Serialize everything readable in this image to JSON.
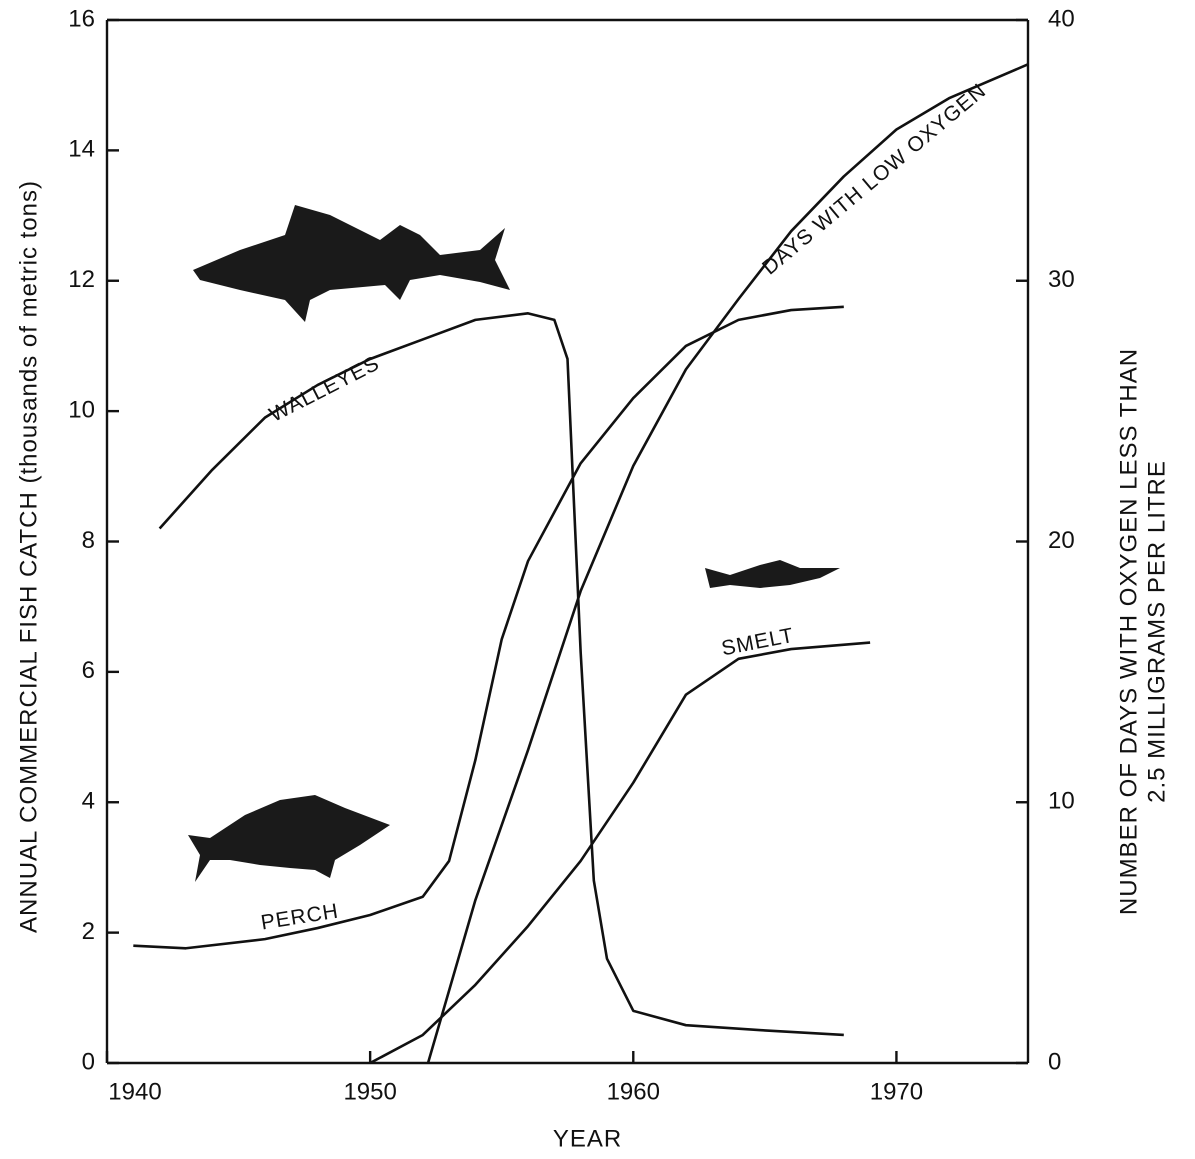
{
  "chart_data": {
    "type": "line",
    "xlabel": "YEAR",
    "ylabel": "ANNUAL COMMERCIAL FISH CATCH  (thousands of metric tons)",
    "y2label": [
      "NUMBER OF DAYS WITH OXYGEN LESS THAN",
      "2.5 MILLIGRAMS PER LITRE"
    ],
    "xlim": [
      1940,
      1975
    ],
    "xticks": [
      1940,
      1950,
      1960,
      1970
    ],
    "ylim": [
      0,
      16
    ],
    "yticks": [
      0,
      2,
      4,
      6,
      8,
      10,
      12,
      14,
      16
    ],
    "y2lim": [
      0,
      40
    ],
    "y2ticks": [
      0,
      10,
      20,
      30,
      40
    ],
    "series": [
      {
        "name": "WALLEYES",
        "color": "#111111",
        "x": [
          1942,
          1944,
          1946,
          1948,
          1950,
          1952,
          1954,
          1956,
          1957,
          1957.5,
          1958,
          1958.5,
          1959,
          1960,
          1962,
          1965,
          1968
        ],
        "values": [
          8.2,
          9.1,
          9.9,
          10.4,
          10.8,
          11.1,
          11.4,
          11.5,
          11.4,
          10.8,
          6.3,
          2.8,
          1.6,
          0.8,
          0.58,
          0.5,
          0.43
        ]
      },
      {
        "name": "PERCH",
        "color": "#111111",
        "x": [
          1941,
          1943,
          1946,
          1948,
          1950,
          1952,
          1953,
          1954,
          1955,
          1956,
          1958,
          1960,
          1962,
          1964,
          1966,
          1968
        ],
        "values": [
          1.8,
          1.76,
          1.9,
          2.07,
          2.27,
          2.55,
          3.1,
          4.65,
          6.5,
          7.7,
          9.2,
          10.2,
          11.0,
          11.4,
          11.55,
          11.6
        ]
      },
      {
        "name": "SMELT",
        "color": "#111111",
        "x": [
          1950,
          1952,
          1954,
          1956,
          1958,
          1960,
          1962,
          1964,
          1966,
          1969
        ],
        "values": [
          0,
          0.43,
          1.2,
          2.1,
          3.1,
          4.3,
          5.65,
          6.2,
          6.35,
          6.45
        ]
      },
      {
        "name": "DAYS WITH LOW OXYGEN",
        "color": "#111111",
        "axis": "y2",
        "x": [
          1952.2,
          1954,
          1956,
          1958,
          1960,
          1962,
          1964,
          1966,
          1968,
          1970,
          1972,
          1975
        ],
        "values": [
          0,
          6.25,
          12,
          18.1,
          22.9,
          26.6,
          29.3,
          31.9,
          34.0,
          35.8,
          37.0,
          38.3
        ]
      }
    ]
  }
}
